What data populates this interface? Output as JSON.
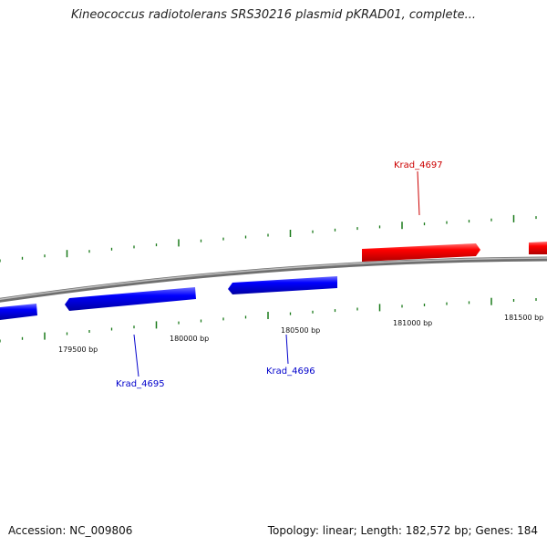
{
  "title": "Kineococcus radiotolerans SRS30216 plasmid pKRAD01, complete...",
  "footer": {
    "accession": "Accession: NC_009806",
    "summary": "Topology: linear; Length: 182,572 bp; Genes: 184"
  },
  "colors": {
    "forward_strand": "#ff0000",
    "reverse_strand": "#0000ff",
    "backbone": "#888888",
    "tick": "#1a7a1a"
  },
  "scale_labels": [
    "179500 bp",
    "180000 bp",
    "180500 bp",
    "181000 bp",
    "181500 bp"
  ],
  "genes": [
    {
      "name": "Krad_4695",
      "strand": "reverse"
    },
    {
      "name": "Krad_4696",
      "strand": "reverse"
    },
    {
      "name": "Krad_4697",
      "strand": "forward"
    }
  ]
}
